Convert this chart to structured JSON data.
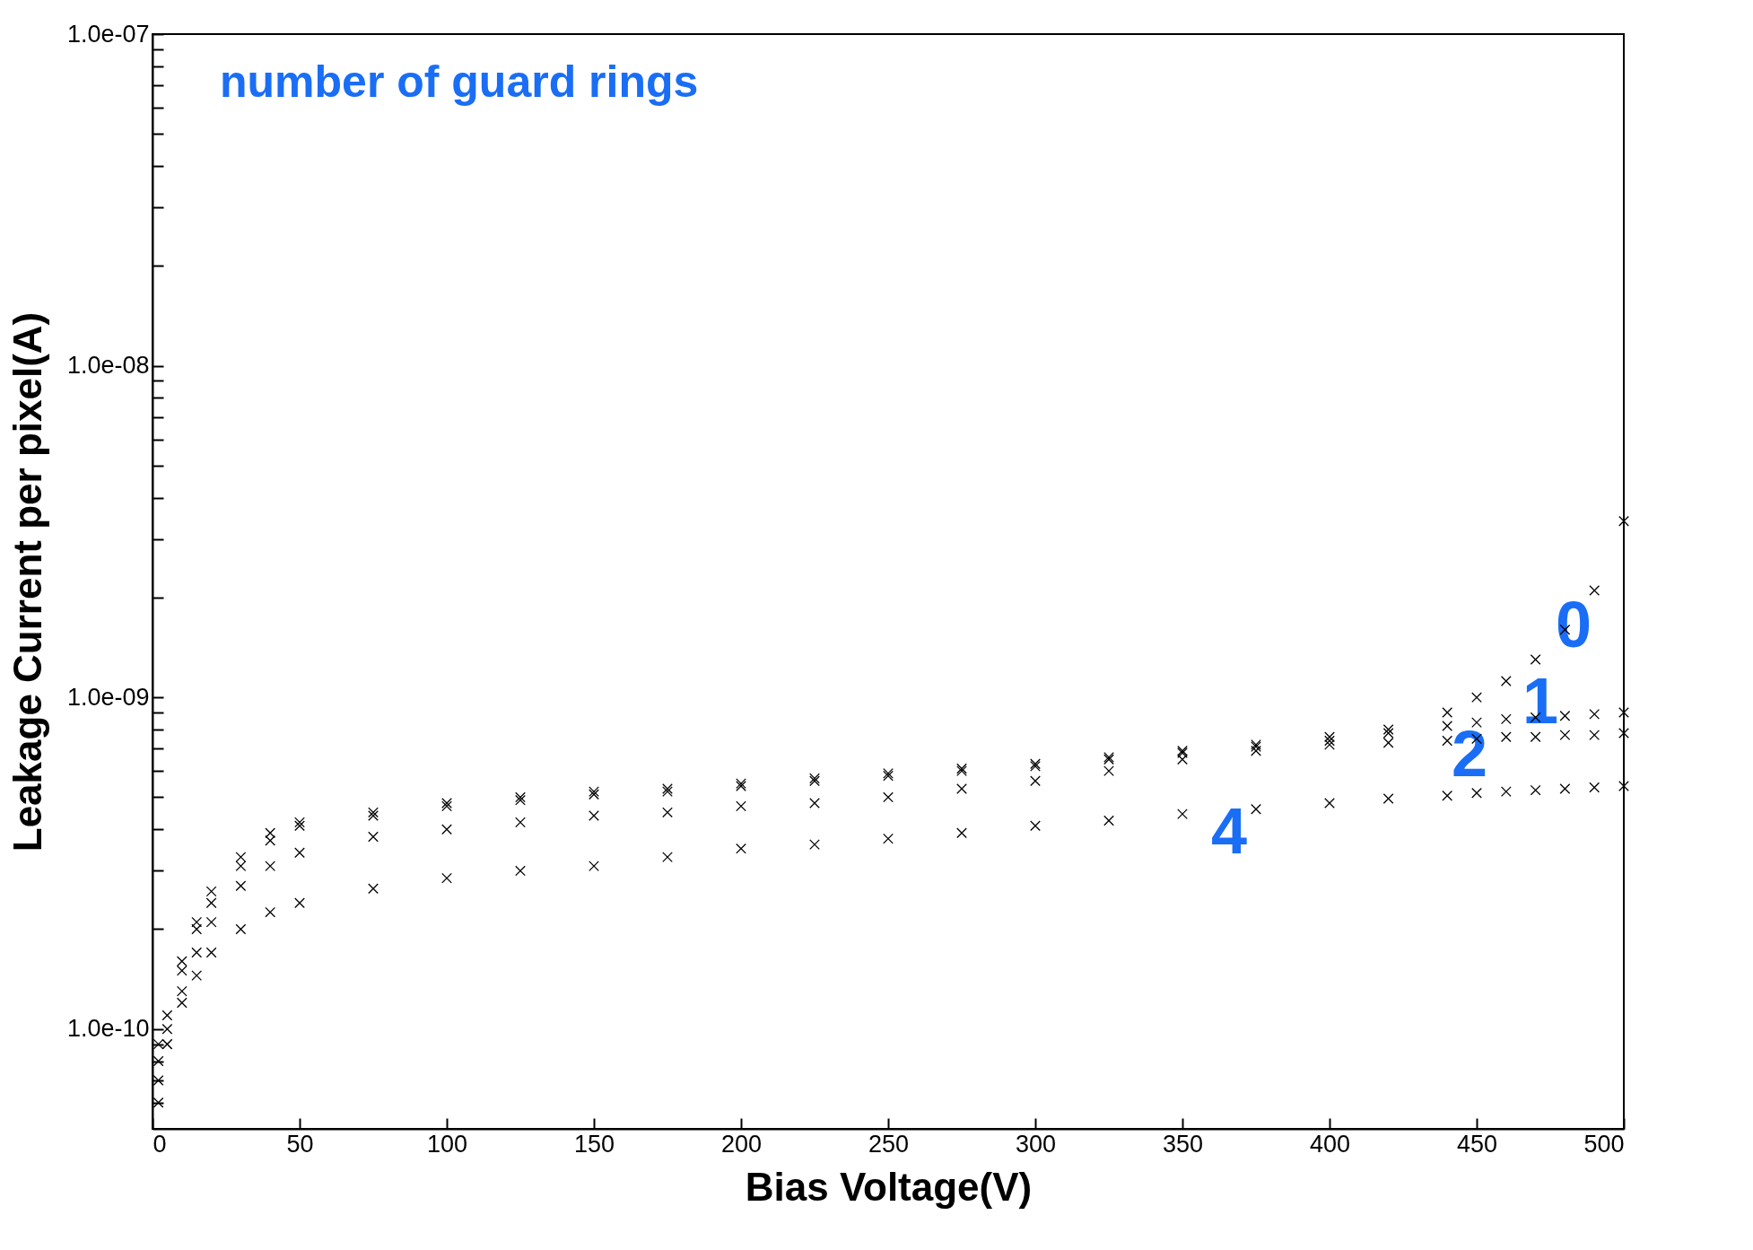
{
  "chart_data": {
    "type": "scatter",
    "xlabel": "Bias Voltage(V)",
    "ylabel": "Leakage Current per pixel(A)",
    "log": true,
    "marker": "cross",
    "xlim": [
      0,
      500
    ],
    "xticks": [
      0,
      50,
      100,
      150,
      200,
      250,
      300,
      350,
      400,
      450,
      500
    ],
    "ylim": [
      5e-11,
      1e-07
    ],
    "yticks": [
      {
        "value": 6e-11,
        "label": null
      },
      {
        "value": 7e-11,
        "label": null
      },
      {
        "value": 8e-11,
        "label": null
      },
      {
        "value": 9e-11,
        "label": null
      },
      {
        "value": 1e-10,
        "label": "1.0e-10"
      },
      {
        "value": 2e-10,
        "label": null
      },
      {
        "value": 3e-10,
        "label": null
      },
      {
        "value": 4e-10,
        "label": null
      },
      {
        "value": 5e-10,
        "label": null
      },
      {
        "value": 6e-10,
        "label": null
      },
      {
        "value": 7e-10,
        "label": null
      },
      {
        "value": 8e-10,
        "label": null
      },
      {
        "value": 9e-10,
        "label": null
      },
      {
        "value": 1e-09,
        "label": "1.0e-09"
      },
      {
        "value": 2e-09,
        "label": null
      },
      {
        "value": 3e-09,
        "label": null
      },
      {
        "value": 4e-09,
        "label": null
      },
      {
        "value": 5e-09,
        "label": null
      },
      {
        "value": 6e-09,
        "label": null
      },
      {
        "value": 7e-09,
        "label": null
      },
      {
        "value": 8e-09,
        "label": null
      },
      {
        "value": 9e-09,
        "label": null
      },
      {
        "value": 1e-08,
        "label": "1.0e-08"
      },
      {
        "value": 2e-08,
        "label": null
      },
      {
        "value": 3e-08,
        "label": null
      },
      {
        "value": 4e-08,
        "label": null
      },
      {
        "value": 5e-08,
        "label": null
      },
      {
        "value": 6e-08,
        "label": null
      },
      {
        "value": 7e-08,
        "label": null
      },
      {
        "value": 8e-08,
        "label": null
      },
      {
        "value": 9e-08,
        "label": null
      },
      {
        "value": 1e-07,
        "label": "1.0e-07"
      }
    ],
    "x": [
      2,
      5,
      10,
      15,
      20,
      30,
      40,
      50,
      75,
      100,
      125,
      150,
      175,
      200,
      225,
      250,
      275,
      300,
      325,
      350,
      375,
      400,
      420,
      440,
      450,
      460,
      470,
      480,
      490,
      500
    ],
    "series": [
      {
        "color": "#000000",
        "values": [
          9e-11,
          1.1e-10,
          1.6e-10,
          2.1e-10,
          2.6e-10,
          3.3e-10,
          3.9e-10,
          4.2e-10,
          4.5e-10,
          4.8e-10,
          5e-10,
          5.2e-10,
          5.3e-10,
          5.5e-10,
          5.7e-10,
          5.9e-10,
          6.1e-10,
          6.3e-10,
          6.6e-10,
          6.9e-10,
          7.2e-10,
          7.6e-10,
          8e-10,
          9e-10,
          1e-09,
          1.12e-09,
          1.3e-09,
          1.6e-09,
          2.1e-09,
          3.4e-09
        ]
      },
      {
        "color": "#000000",
        "values": [
          8e-11,
          1e-10,
          1.5e-10,
          2e-10,
          2.4e-10,
          3.1e-10,
          3.7e-10,
          4.1e-10,
          4.4e-10,
          4.7e-10,
          4.9e-10,
          5.1e-10,
          5.2e-10,
          5.4e-10,
          5.6e-10,
          5.8e-10,
          6e-10,
          6.2e-10,
          6.5e-10,
          6.8e-10,
          7.1e-10,
          7.4e-10,
          7.8e-10,
          8.2e-10,
          8.4e-10,
          8.6e-10,
          8.7e-10,
          8.8e-10,
          8.9e-10,
          9e-10
        ]
      },
      {
        "color": "#000000",
        "values": [
          7e-11,
          9e-11,
          1.3e-10,
          1.7e-10,
          2.1e-10,
          2.7e-10,
          3.1e-10,
          3.4e-10,
          3.8e-10,
          4e-10,
          4.2e-10,
          4.4e-10,
          4.5e-10,
          4.7e-10,
          4.8e-10,
          5e-10,
          5.3e-10,
          5.6e-10,
          6e-10,
          6.5e-10,
          6.9e-10,
          7.2e-10,
          7.3e-10,
          7.4e-10,
          7.5e-10,
          7.6e-10,
          7.6e-10,
          7.7e-10,
          7.7e-10,
          7.8e-10
        ]
      },
      {
        "color": "#000000",
        "values": [
          6e-11,
          9e-11,
          1.2e-10,
          1.45e-10,
          1.7e-10,
          2e-10,
          2.25e-10,
          2.4e-10,
          2.65e-10,
          2.85e-10,
          3e-10,
          3.1e-10,
          3.3e-10,
          3.5e-10,
          3.6e-10,
          3.75e-10,
          3.9e-10,
          4.1e-10,
          4.25e-10,
          4.45e-10,
          4.6e-10,
          4.8e-10,
          4.95e-10,
          5.05e-10,
          5.15e-10,
          5.2e-10,
          5.25e-10,
          5.3e-10,
          5.35e-10,
          5.4e-10
        ]
      }
    ],
    "annotations": [
      "number of guard rings",
      "0",
      "1",
      "2",
      "4"
    ]
  }
}
